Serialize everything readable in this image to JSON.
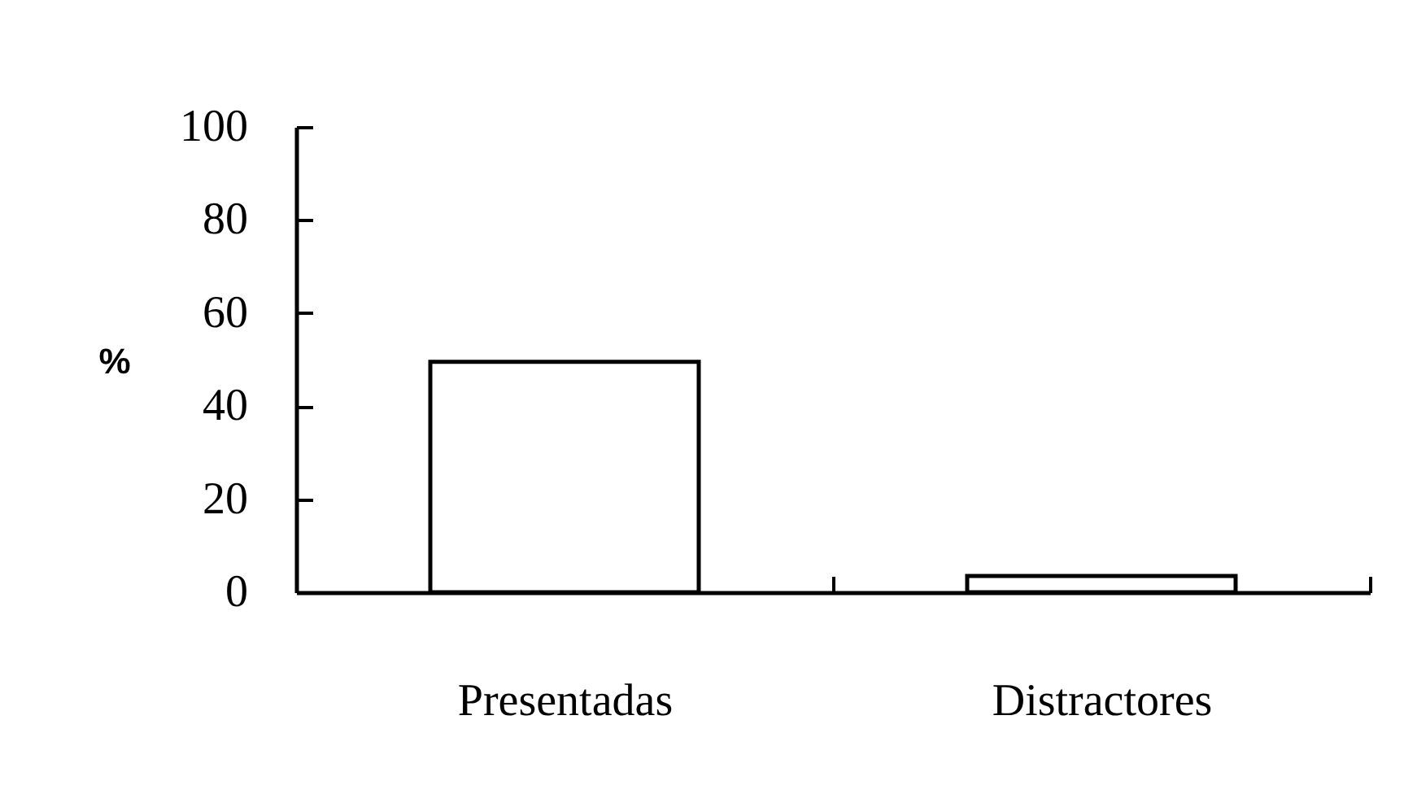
{
  "chart_data": {
    "type": "bar",
    "ylabel": "%",
    "categories": [
      "Presentadas",
      "Distractores"
    ],
    "series": [
      {
        "color": "#ffffff",
        "values": [
          49.5,
          3.5
        ]
      }
    ],
    "ylim": [
      0,
      100
    ],
    "yticks": [
      0,
      20,
      40,
      60,
      80,
      100
    ],
    "grid": false,
    "legend": false
  }
}
